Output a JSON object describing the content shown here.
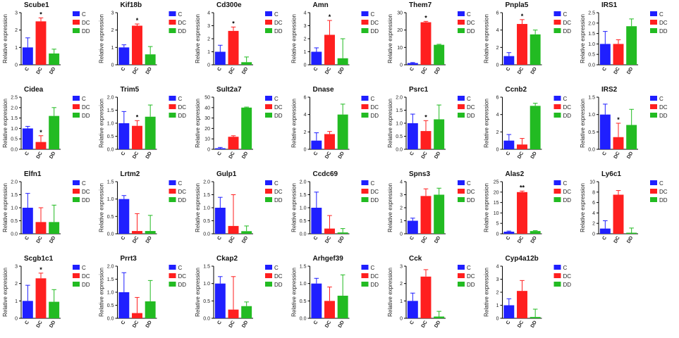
{
  "figure": {
    "groups": [
      "C",
      "DC",
      "DD"
    ],
    "colors": {
      "C": "#1f1fff",
      "DC": "#ff1f1f",
      "DD": "#22bb22"
    },
    "ylabel": "Relative expression"
  },
  "chart_data": [
    {
      "type": "bar",
      "title": "Scube1",
      "categories": [
        "C",
        "DC",
        "DD"
      ],
      "values": [
        1.0,
        2.5,
        0.65
      ],
      "errors": [
        0.55,
        0.2,
        0.25
      ],
      "ylim": [
        0,
        3
      ],
      "yticks": [
        0,
        1,
        2,
        3
      ],
      "sig": [
        "",
        "*",
        ""
      ],
      "ylabel": "Relative expression"
    },
    {
      "type": "bar",
      "title": "Kif18b",
      "categories": [
        "C",
        "DC",
        "DD"
      ],
      "values": [
        1.0,
        2.25,
        0.6
      ],
      "errors": [
        0.15,
        0.1,
        0.45
      ],
      "ylim": [
        0,
        3
      ],
      "yticks": [
        0,
        1,
        2,
        3
      ],
      "sig": [
        "",
        "*",
        ""
      ],
      "ylabel": "Relative expression"
    },
    {
      "type": "bar",
      "title": "Cd300e",
      "categories": [
        "C",
        "DC",
        "DD"
      ],
      "values": [
        1.0,
        2.6,
        0.2
      ],
      "errors": [
        0.5,
        0.3,
        0.4
      ],
      "ylim": [
        0,
        4
      ],
      "yticks": [
        0,
        1,
        2,
        3,
        4
      ],
      "sig": [
        "",
        "*",
        ""
      ],
      "ylabel": "Relative expression"
    },
    {
      "type": "bar",
      "title": "Amn",
      "categories": [
        "C",
        "DC",
        "DD"
      ],
      "values": [
        1.0,
        2.3,
        0.5
      ],
      "errors": [
        0.3,
        1.1,
        1.5
      ],
      "ylim": [
        0,
        4
      ],
      "yticks": [
        0,
        1,
        2,
        3,
        4
      ],
      "sig": [
        "",
        "*",
        ""
      ],
      "ylabel": "Relative expression"
    },
    {
      "type": "bar",
      "title": "Them7",
      "categories": [
        "C",
        "DC",
        "DD"
      ],
      "values": [
        1.0,
        24.5,
        11.5
      ],
      "errors": [
        0.3,
        0.5,
        0.3
      ],
      "ylim": [
        0,
        30
      ],
      "yticks": [
        0,
        10,
        20,
        30
      ],
      "sig": [
        "",
        "*",
        ""
      ],
      "ylabel": "Relative expression"
    },
    {
      "type": "bar",
      "title": "Pnpla5",
      "categories": [
        "C",
        "DC",
        "DD"
      ],
      "values": [
        1.0,
        4.7,
        3.5
      ],
      "errors": [
        0.4,
        0.5,
        0.5
      ],
      "ylim": [
        0,
        6
      ],
      "yticks": [
        0,
        2,
        4,
        6
      ],
      "sig": [
        "",
        "*",
        ""
      ],
      "ylabel": "Relative expression"
    },
    {
      "type": "bar",
      "title": "IRS1",
      "categories": [
        "C",
        "DC",
        "DD"
      ],
      "values": [
        1.0,
        1.0,
        1.85
      ],
      "errors": [
        0.6,
        0.2,
        0.35
      ],
      "ylim": [
        0,
        2.5
      ],
      "yticks": [
        0.0,
        0.5,
        1.0,
        1.5,
        2.0,
        2.5
      ],
      "sig": [
        "",
        "",
        ""
      ],
      "ylabel": "Relative expression"
    },
    {
      "type": "bar",
      "title": "Cidea",
      "categories": [
        "C",
        "DC",
        "DD"
      ],
      "values": [
        1.0,
        0.35,
        1.6
      ],
      "errors": [
        0.1,
        0.3,
        0.4
      ],
      "ylim": [
        0,
        2.5
      ],
      "yticks": [
        0.0,
        0.5,
        1.0,
        1.5,
        2.0,
        2.5
      ],
      "sig": [
        "",
        "*",
        ""
      ],
      "ylabel": "Relative expression"
    },
    {
      "type": "bar",
      "title": "Trim5",
      "categories": [
        "C",
        "DC",
        "DD"
      ],
      "values": [
        1.0,
        0.9,
        1.25
      ],
      "errors": [
        0.45,
        0.2,
        0.45
      ],
      "ylim": [
        0,
        2.0
      ],
      "yticks": [
        0.0,
        0.5,
        1.0,
        1.5,
        2.0
      ],
      "sig": [
        "",
        "*",
        ""
      ],
      "ylabel": "Relative expression"
    },
    {
      "type": "bar",
      "title": "Sult2a7",
      "categories": [
        "C",
        "DC",
        "DD"
      ],
      "values": [
        1.0,
        12.0,
        40.0
      ],
      "errors": [
        0.8,
        1.0,
        0.5
      ],
      "ylim": [
        0,
        50
      ],
      "yticks": [
        0,
        10,
        20,
        30,
        40,
        50
      ],
      "sig": [
        "",
        "",
        ""
      ],
      "ylabel": "Relative expression"
    },
    {
      "type": "bar",
      "title": "Dnase",
      "categories": [
        "C",
        "DC",
        "DD"
      ],
      "values": [
        1.0,
        1.75,
        4.0
      ],
      "errors": [
        0.9,
        0.3,
        1.2
      ],
      "ylim": [
        0,
        6
      ],
      "yticks": [
        0,
        2,
        4,
        6
      ],
      "sig": [
        "",
        "",
        ""
      ],
      "ylabel": "Relative expression"
    },
    {
      "type": "bar",
      "title": "Psrc1",
      "categories": [
        "C",
        "DC",
        "DD"
      ],
      "values": [
        1.0,
        0.7,
        1.15
      ],
      "errors": [
        0.35,
        0.4,
        0.55
      ],
      "ylim": [
        0,
        2.0
      ],
      "yticks": [
        0.0,
        0.5,
        1.0,
        1.5,
        2.0
      ],
      "sig": [
        "",
        "*",
        ""
      ],
      "ylabel": "Relative expression"
    },
    {
      "type": "bar",
      "title": "Ccnb2",
      "categories": [
        "C",
        "DC",
        "DD"
      ],
      "values": [
        1.0,
        0.55,
        5.0
      ],
      "errors": [
        0.7,
        0.7,
        0.3
      ],
      "ylim": [
        0,
        6
      ],
      "yticks": [
        0,
        2,
        4,
        6
      ],
      "sig": [
        "",
        "",
        ""
      ],
      "ylabel": "Relative expression"
    },
    {
      "type": "bar",
      "title": "IRS2",
      "categories": [
        "C",
        "DC",
        "DD"
      ],
      "values": [
        1.0,
        0.35,
        0.7
      ],
      "errors": [
        0.3,
        0.4,
        0.45
      ],
      "ylim": [
        0,
        1.5
      ],
      "yticks": [
        0.0,
        0.5,
        1.0,
        1.5
      ],
      "sig": [
        "",
        "*",
        ""
      ],
      "ylabel": "Relative expression"
    },
    {
      "type": "bar",
      "title": "Elfn1",
      "categories": [
        "C",
        "DC",
        "DD"
      ],
      "values": [
        1.0,
        0.45,
        0.45
      ],
      "errors": [
        0.55,
        0.55,
        0.65
      ],
      "ylim": [
        0,
        2.0
      ],
      "yticks": [
        0.0,
        0.5,
        1.0,
        1.5,
        2.0
      ],
      "sig": [
        "",
        "",
        ""
      ],
      "ylabel": "Relative expression"
    },
    {
      "type": "bar",
      "title": "Lrtm2",
      "categories": [
        "C",
        "DC",
        "DD"
      ],
      "values": [
        1.0,
        0.08,
        0.08
      ],
      "errors": [
        0.1,
        0.5,
        0.45
      ],
      "ylim": [
        0,
        1.5
      ],
      "yticks": [
        0.0,
        0.5,
        1.0,
        1.5
      ],
      "sig": [
        "",
        "",
        ""
      ],
      "ylabel": "Relative expression"
    },
    {
      "type": "bar",
      "title": "Gulp1",
      "categories": [
        "C",
        "DC",
        "DD"
      ],
      "values": [
        1.0,
        0.3,
        0.1
      ],
      "errors": [
        0.4,
        1.2,
        0.2
      ],
      "ylim": [
        0,
        2.0
      ],
      "yticks": [
        0.0,
        0.5,
        1.0,
        1.5,
        2.0
      ],
      "sig": [
        "",
        "",
        ""
      ],
      "ylabel": "Relative expression"
    },
    {
      "type": "bar",
      "title": "Ccdc69",
      "categories": [
        "C",
        "DC",
        "DD"
      ],
      "values": [
        1.0,
        0.2,
        0.05
      ],
      "errors": [
        0.6,
        0.5,
        0.15
      ],
      "ylim": [
        0,
        2.0
      ],
      "yticks": [
        0.0,
        0.5,
        1.0,
        1.5,
        2.0
      ],
      "sig": [
        "",
        "",
        ""
      ],
      "ylabel": "Relative expression"
    },
    {
      "type": "bar",
      "title": "Spns3",
      "categories": [
        "C",
        "DC",
        "DD"
      ],
      "values": [
        1.0,
        2.9,
        3.0
      ],
      "errors": [
        0.2,
        0.55,
        0.5
      ],
      "ylim": [
        0,
        4
      ],
      "yticks": [
        0,
        1,
        2,
        3,
        4
      ],
      "sig": [
        "",
        "",
        ""
      ],
      "ylabel": "Relative expression"
    },
    {
      "type": "bar",
      "title": "Alas2",
      "categories": [
        "C",
        "DC",
        "DD"
      ],
      "values": [
        1.0,
        20.0,
        1.3
      ],
      "errors": [
        0.3,
        0.5,
        0.2
      ],
      "ylim": [
        0,
        25
      ],
      "yticks": [
        0,
        5,
        10,
        15,
        20,
        25
      ],
      "sig": [
        "",
        "**",
        ""
      ],
      "ylabel": "Relative expression"
    },
    {
      "type": "bar",
      "title": "Ly6c1",
      "categories": [
        "C",
        "DC",
        "DD"
      ],
      "values": [
        1.0,
        7.5,
        0.2
      ],
      "errors": [
        1.5,
        0.8,
        0.9
      ],
      "ylim": [
        0,
        10
      ],
      "yticks": [
        0,
        2,
        4,
        6,
        8,
        10
      ],
      "sig": [
        "",
        "",
        ""
      ],
      "ylabel": "Relative expression"
    },
    {
      "type": "bar",
      "title": "Scgb1c1",
      "categories": [
        "C",
        "DC",
        "DD"
      ],
      "values": [
        1.0,
        2.3,
        0.95
      ],
      "errors": [
        0.9,
        0.3,
        0.7
      ],
      "ylim": [
        0,
        3
      ],
      "yticks": [
        0,
        1,
        2,
        3
      ],
      "sig": [
        "",
        "*",
        ""
      ],
      "ylabel": "Relative expression"
    },
    {
      "type": "bar",
      "title": "Prrt3",
      "categories": [
        "C",
        "DC",
        "DD"
      ],
      "values": [
        1.0,
        0.2,
        0.65
      ],
      "errors": [
        0.75,
        0.6,
        0.8
      ],
      "ylim": [
        0,
        2.0
      ],
      "yticks": [
        0.0,
        0.5,
        1.0,
        1.5,
        2.0
      ],
      "sig": [
        "",
        "",
        ""
      ],
      "ylabel": "Relative expression"
    },
    {
      "type": "bar",
      "title": "Ckap2",
      "categories": [
        "C",
        "DC",
        "DD"
      ],
      "values": [
        1.0,
        0.25,
        0.35
      ],
      "errors": [
        0.2,
        0.95,
        0.12
      ],
      "ylim": [
        0,
        1.5
      ],
      "yticks": [
        0.0,
        0.5,
        1.0,
        1.5
      ],
      "sig": [
        "",
        "",
        ""
      ],
      "ylabel": "Relative expression"
    },
    {
      "type": "bar",
      "title": "Arhgef39",
      "categories": [
        "C",
        "DC",
        "DD"
      ],
      "values": [
        1.0,
        0.5,
        0.65
      ],
      "errors": [
        0.15,
        0.4,
        0.6
      ],
      "ylim": [
        0,
        1.5
      ],
      "yticks": [
        0.0,
        0.5,
        1.0,
        1.5
      ],
      "sig": [
        "",
        "",
        ""
      ],
      "ylabel": "Relative expression"
    },
    {
      "type": "bar",
      "title": "Cck",
      "categories": [
        "C",
        "DC",
        "DD"
      ],
      "values": [
        1.0,
        2.4,
        0.1
      ],
      "errors": [
        0.45,
        0.4,
        0.3
      ],
      "ylim": [
        0,
        3
      ],
      "yticks": [
        0,
        1,
        2,
        3
      ],
      "sig": [
        "",
        "",
        ""
      ],
      "ylabel": "Relative expression"
    },
    {
      "type": "bar",
      "title": "Cyp4a12b",
      "categories": [
        "C",
        "DC",
        "DD"
      ],
      "values": [
        1.0,
        2.1,
        0.1
      ],
      "errors": [
        0.5,
        0.8,
        0.6
      ],
      "ylim": [
        0,
        4
      ],
      "yticks": [
        0,
        1,
        2,
        3,
        4
      ],
      "sig": [
        "",
        "",
        ""
      ],
      "ylabel": "Relative expression"
    }
  ]
}
